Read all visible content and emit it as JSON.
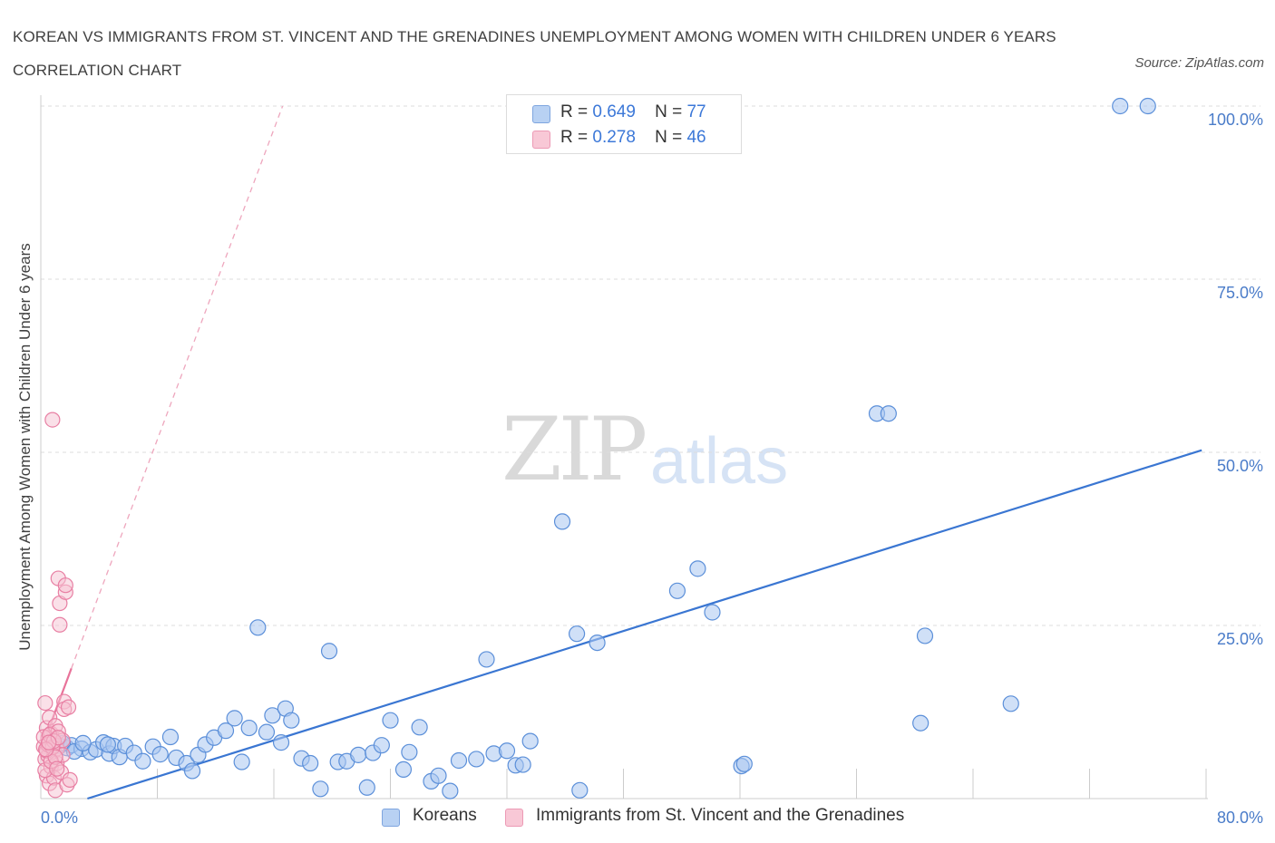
{
  "title": "KOREAN VS IMMIGRANTS FROM ST. VINCENT AND THE GRENADINES UNEMPLOYMENT AMONG WOMEN WITH CHILDREN UNDER 6 YEARS CORRELATION CHART",
  "source": "Source: ZipAtlas.com",
  "watermark": {
    "zip": "ZIP",
    "atlas": "atlas"
  },
  "legend": {
    "series1": {
      "r_label": "R =",
      "r_value": "0.649",
      "n_label": "N =",
      "n_value": "77"
    },
    "series2": {
      "r_label": "R =",
      "r_value": "0.278",
      "n_label": "N =",
      "n_value": "46"
    }
  },
  "bottom_legend": {
    "series1": "Koreans",
    "series2": "Immigrants from St. Vincent and the Grenadines"
  },
  "chart_data": {
    "type": "scatter",
    "ylabel": "Unemployment Among Women with Children Under 6 years",
    "xlabel": "",
    "xlim": [
      0,
      80
    ],
    "ylim": [
      0,
      100
    ],
    "x_tick_labels": [
      "0.0%",
      "80.0%"
    ],
    "y_ticks": [
      {
        "value": 25,
        "label": "25.0%"
      },
      {
        "value": 50,
        "label": "50.0%"
      },
      {
        "value": 75,
        "label": "75.0%"
      },
      {
        "value": 100,
        "label": "100.0%"
      }
    ],
    "grid": "horizontal dashed",
    "legend_position": "top-center",
    "colors": {
      "koreans": "#5b8fd9",
      "koreans_fill": "#a9c7f0",
      "svg": "#e87fa3",
      "svg_fill": "#f6c1d2",
      "trend_blue": "#3a76d2",
      "trend_pink": "#e8739a"
    },
    "series": [
      {
        "name": "Koreans",
        "trend": {
          "x": [
            3.2,
            79.7
          ],
          "y": [
            0,
            50.3
          ]
        },
        "points": [
          [
            1.3,
            7.6
          ],
          [
            1.8,
            7.3
          ],
          [
            2.1,
            7.7
          ],
          [
            2.8,
            7.2
          ],
          [
            3.4,
            6.7
          ],
          [
            3.8,
            7.1
          ],
          [
            4.3,
            8.1
          ],
          [
            4.7,
            6.5
          ],
          [
            5.0,
            7.6
          ],
          [
            5.4,
            6.0
          ],
          [
            5.8,
            7.6
          ],
          [
            6.4,
            6.6
          ],
          [
            7.0,
            5.4
          ],
          [
            7.7,
            7.5
          ],
          [
            8.2,
            6.4
          ],
          [
            8.9,
            8.9
          ],
          [
            9.3,
            5.9
          ],
          [
            10.0,
            5.1
          ],
          [
            10.4,
            4.0
          ],
          [
            10.8,
            6.3
          ],
          [
            11.3,
            7.8
          ],
          [
            11.9,
            8.8
          ],
          [
            12.7,
            9.8
          ],
          [
            13.3,
            11.6
          ],
          [
            13.8,
            5.3
          ],
          [
            14.3,
            10.2
          ],
          [
            14.9,
            24.7
          ],
          [
            15.5,
            9.6
          ],
          [
            15.9,
            12.0
          ],
          [
            16.5,
            8.1
          ],
          [
            16.8,
            13.0
          ],
          [
            17.2,
            11.3
          ],
          [
            17.9,
            5.8
          ],
          [
            18.5,
            5.1
          ],
          [
            19.2,
            1.4
          ],
          [
            19.8,
            21.3
          ],
          [
            20.4,
            5.3
          ],
          [
            21.0,
            5.4
          ],
          [
            21.8,
            6.3
          ],
          [
            22.4,
            1.6
          ],
          [
            22.8,
            6.6
          ],
          [
            23.4,
            7.7
          ],
          [
            24.0,
            11.3
          ],
          [
            24.9,
            4.2
          ],
          [
            25.3,
            6.7
          ],
          [
            26.0,
            10.3
          ],
          [
            26.8,
            2.5
          ],
          [
            27.3,
            3.3
          ],
          [
            28.1,
            1.1
          ],
          [
            28.7,
            5.5
          ],
          [
            29.9,
            5.7
          ],
          [
            30.6,
            20.1
          ],
          [
            31.1,
            6.5
          ],
          [
            32.0,
            6.9
          ],
          [
            32.6,
            4.8
          ],
          [
            33.1,
            4.9
          ],
          [
            33.6,
            8.3
          ],
          [
            35.8,
            40.0
          ],
          [
            36.8,
            23.8
          ],
          [
            38.2,
            22.5
          ],
          [
            37.0,
            1.2
          ],
          [
            43.7,
            30.0
          ],
          [
            45.1,
            33.2
          ],
          [
            46.1,
            26.9
          ],
          [
            48.1,
            4.7
          ],
          [
            48.3,
            5.0
          ],
          [
            57.4,
            55.6
          ],
          [
            58.2,
            55.6
          ],
          [
            60.4,
            10.9
          ],
          [
            60.7,
            23.5
          ],
          [
            66.6,
            13.7
          ],
          [
            74.1,
            100.0
          ],
          [
            76.0,
            100.0
          ],
          [
            1.5,
            8.0
          ],
          [
            2.3,
            6.8
          ],
          [
            2.9,
            8.0
          ],
          [
            4.6,
            7.8
          ]
        ]
      },
      {
        "name": "Immigrants from St. Vincent and the Grenadines",
        "trend": {
          "x": [
            0.0,
            2.1
          ],
          "y": [
            7.0,
            18.8
          ]
        },
        "trend_extension": {
          "x": [
            2.1,
            16.6
          ],
          "y": [
            18.8,
            100.0
          ]
        },
        "points": [
          [
            0.2,
            7.5
          ],
          [
            0.3,
            13.8
          ],
          [
            0.3,
            5.7
          ],
          [
            0.4,
            10.2
          ],
          [
            0.4,
            3.3
          ],
          [
            0.5,
            8.7
          ],
          [
            0.5,
            6.2
          ],
          [
            0.6,
            11.7
          ],
          [
            0.6,
            2.2
          ],
          [
            0.7,
            9.4
          ],
          [
            0.7,
            4.6
          ],
          [
            0.8,
            8.0
          ],
          [
            0.8,
            54.7
          ],
          [
            0.9,
            6.8
          ],
          [
            0.9,
            3.0
          ],
          [
            1.0,
            10.5
          ],
          [
            1.0,
            1.2
          ],
          [
            1.1,
            7.2
          ],
          [
            1.1,
            5.1
          ],
          [
            1.2,
            9.7
          ],
          [
            1.2,
            31.8
          ],
          [
            1.3,
            25.1
          ],
          [
            1.3,
            28.2
          ],
          [
            1.4,
            3.8
          ],
          [
            1.5,
            8.4
          ],
          [
            1.5,
            6.3
          ],
          [
            1.6,
            14.0
          ],
          [
            1.6,
            12.9
          ],
          [
            1.7,
            29.8
          ],
          [
            1.7,
            30.8
          ],
          [
            1.8,
            2.0
          ],
          [
            1.9,
            13.2
          ],
          [
            2.0,
            2.7
          ],
          [
            0.2,
            8.9
          ],
          [
            0.3,
            4.1
          ],
          [
            0.4,
            6.9
          ],
          [
            0.5,
            7.8
          ],
          [
            0.6,
            9.2
          ],
          [
            0.7,
            5.4
          ],
          [
            0.8,
            7.4
          ],
          [
            0.9,
            8.3
          ],
          [
            1.0,
            6.0
          ],
          [
            1.1,
            4.3
          ],
          [
            1.2,
            8.8
          ],
          [
            0.35,
            7.1
          ],
          [
            0.55,
            8.1
          ]
        ]
      }
    ]
  }
}
